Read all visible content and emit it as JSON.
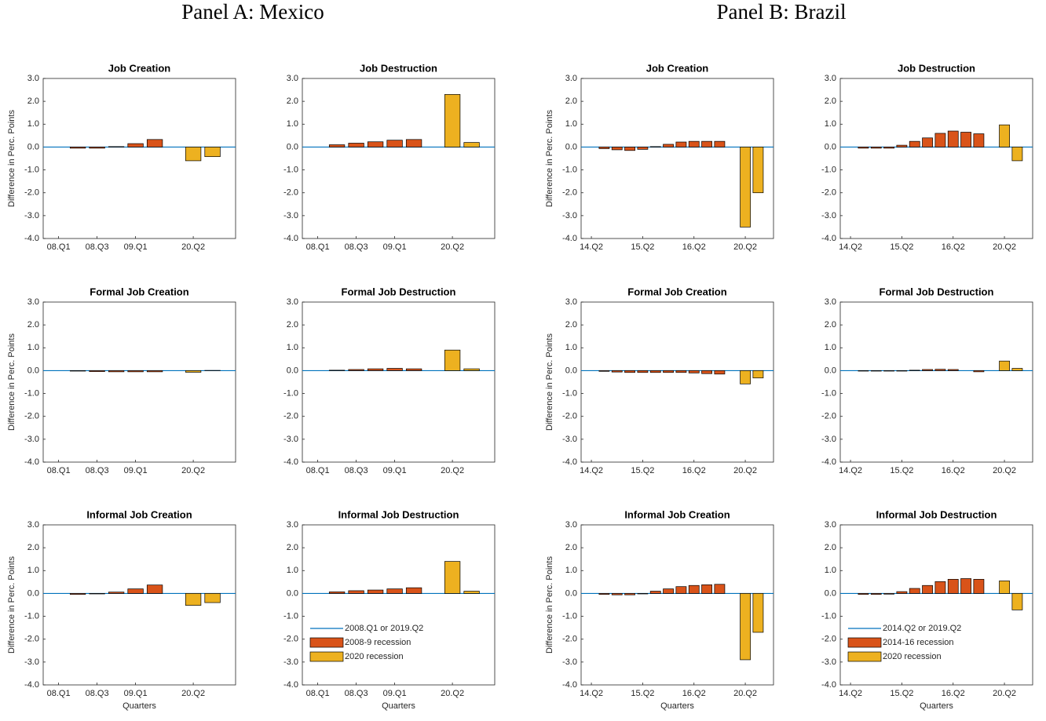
{
  "panels": [
    {
      "title": "Panel A: Mexico"
    },
    {
      "title": "Panel B: Brazil"
    }
  ],
  "chart_data": [
    {
      "type": "bar",
      "title": "Job Creation",
      "ylabel": "Difference in Perc. Points",
      "categories": [
        "08.Q1",
        null,
        "08.Q3",
        null,
        "09.Q1",
        null,
        null,
        "20.Q2",
        null
      ],
      "ylim": [
        -4,
        3
      ],
      "yticks": [
        {
          "value": -4,
          "label": "-4.0"
        },
        {
          "value": -3,
          "label": "-3.0"
        },
        {
          "value": -2,
          "label": "-2.0"
        },
        {
          "value": -1,
          "label": "-1.0"
        },
        {
          "value": 0,
          "label": "0.0"
        },
        {
          "value": 1,
          "label": "1.0"
        },
        {
          "value": 2,
          "label": "2.0"
        },
        {
          "value": 3,
          "label": "3.0"
        }
      ],
      "baseline": {
        "value": 0,
        "color": "#0072bd"
      },
      "series": [
        {
          "color": "#d95319",
          "values": [
            0,
            -0.05,
            -0.05,
            0.02,
            0.15,
            0.33,
            null,
            null,
            null
          ]
        },
        {
          "color": "#edb120",
          "values": [
            null,
            null,
            null,
            null,
            null,
            null,
            null,
            -0.6,
            -0.42
          ]
        }
      ]
    },
    {
      "type": "bar",
      "title": "Job Destruction",
      "categories": [
        "08.Q1",
        null,
        "08.Q3",
        null,
        "09.Q1",
        null,
        null,
        "20.Q2",
        null
      ],
      "ylim": [
        -4,
        3
      ],
      "yticks": [
        {
          "value": -4,
          "label": "-4.0"
        },
        {
          "value": -3,
          "label": "-3.0"
        },
        {
          "value": -2,
          "label": "-2.0"
        },
        {
          "value": -1,
          "label": "-1.0"
        },
        {
          "value": 0,
          "label": "0.0"
        },
        {
          "value": 1,
          "label": "1.0"
        },
        {
          "value": 2,
          "label": "2.0"
        },
        {
          "value": 3,
          "label": "3.0"
        }
      ],
      "baseline": {
        "value": 0,
        "color": "#0072bd"
      },
      "series": [
        {
          "color": "#d95319",
          "values": [
            0,
            0.1,
            0.17,
            0.23,
            0.3,
            0.33,
            null,
            null,
            null
          ]
        },
        {
          "color": "#edb120",
          "values": [
            null,
            null,
            null,
            null,
            null,
            null,
            null,
            2.3,
            0.2
          ]
        }
      ]
    },
    {
      "type": "bar",
      "title": "Formal Job Creation",
      "ylabel": "Difference in Perc. Points",
      "categories": [
        "08.Q1",
        null,
        "08.Q3",
        null,
        "09.Q1",
        null,
        null,
        "20.Q2",
        null
      ],
      "ylim": [
        -4,
        3
      ],
      "yticks": [
        {
          "value": -4,
          "label": "-4.0"
        },
        {
          "value": -3,
          "label": "-3.0"
        },
        {
          "value": -2,
          "label": "-2.0"
        },
        {
          "value": -1,
          "label": "-1.0"
        },
        {
          "value": 0,
          "label": "0.0"
        },
        {
          "value": 1,
          "label": "1.0"
        },
        {
          "value": 2,
          "label": "2.0"
        },
        {
          "value": 3,
          "label": "3.0"
        }
      ],
      "baseline": {
        "value": 0,
        "color": "#0072bd"
      },
      "series": [
        {
          "color": "#d95319",
          "values": [
            0,
            -0.02,
            -0.04,
            -0.05,
            -0.05,
            -0.05,
            null,
            null,
            null
          ]
        },
        {
          "color": "#edb120",
          "values": [
            null,
            null,
            null,
            null,
            null,
            null,
            null,
            -0.07,
            0.01
          ]
        }
      ]
    },
    {
      "type": "bar",
      "title": "Formal Job Destruction",
      "categories": [
        "08.Q1",
        null,
        "08.Q3",
        null,
        "09.Q1",
        null,
        null,
        "20.Q2",
        null
      ],
      "ylim": [
        -4,
        3
      ],
      "yticks": [
        {
          "value": -4,
          "label": "-4.0"
        },
        {
          "value": -3,
          "label": "-3.0"
        },
        {
          "value": -2,
          "label": "-2.0"
        },
        {
          "value": -1,
          "label": "-1.0"
        },
        {
          "value": 0,
          "label": "0.0"
        },
        {
          "value": 1,
          "label": "1.0"
        },
        {
          "value": 2,
          "label": "2.0"
        },
        {
          "value": 3,
          "label": "3.0"
        }
      ],
      "baseline": {
        "value": 0,
        "color": "#0072bd"
      },
      "series": [
        {
          "color": "#d95319",
          "values": [
            0,
            0.02,
            0.05,
            0.08,
            0.1,
            0.08,
            null,
            null,
            null
          ]
        },
        {
          "color": "#edb120",
          "values": [
            null,
            null,
            null,
            null,
            null,
            null,
            null,
            0.9,
            0.08
          ]
        }
      ]
    },
    {
      "type": "bar",
      "title": "Informal Job Creation",
      "ylabel": "Difference in Perc. Points",
      "xlabel": "Quarters",
      "categories": [
        "08.Q1",
        null,
        "08.Q3",
        null,
        "09.Q1",
        null,
        null,
        "20.Q2",
        null
      ],
      "ylim": [
        -4,
        3
      ],
      "yticks": [
        {
          "value": -4,
          "label": "-4.0"
        },
        {
          "value": -3,
          "label": "-3.0"
        },
        {
          "value": -2,
          "label": "-2.0"
        },
        {
          "value": -1,
          "label": "-1.0"
        },
        {
          "value": 0,
          "label": "0.0"
        },
        {
          "value": 1,
          "label": "1.0"
        },
        {
          "value": 2,
          "label": "2.0"
        },
        {
          "value": 3,
          "label": "3.0"
        }
      ],
      "baseline": {
        "value": 0,
        "color": "#0072bd"
      },
      "series": [
        {
          "color": "#d95319",
          "values": [
            0,
            -0.04,
            -0.02,
            0.06,
            0.2,
            0.37,
            null,
            null,
            null
          ]
        },
        {
          "color": "#edb120",
          "values": [
            null,
            null,
            null,
            null,
            null,
            null,
            null,
            -0.52,
            -0.4
          ]
        }
      ]
    },
    {
      "type": "bar",
      "title": "Informal Job Destruction",
      "xlabel": "Quarters",
      "legend": "lower left",
      "categories": [
        "08.Q1",
        null,
        "08.Q3",
        null,
        "09.Q1",
        null,
        null,
        "20.Q2",
        null
      ],
      "ylim": [
        -4,
        3
      ],
      "yticks": [
        {
          "value": -4,
          "label": "-4.0"
        },
        {
          "value": -3,
          "label": "-3.0"
        },
        {
          "value": -2,
          "label": "-2.0"
        },
        {
          "value": -1,
          "label": "-1.0"
        },
        {
          "value": 0,
          "label": "0.0"
        },
        {
          "value": 1,
          "label": "1.0"
        },
        {
          "value": 2,
          "label": "2.0"
        },
        {
          "value": 3,
          "label": "3.0"
        }
      ],
      "baseline": {
        "value": 0,
        "color": "#0072bd",
        "name": "2008.Q1 or 2019.Q2"
      },
      "series": [
        {
          "name": "2008-9 recession",
          "color": "#d95319",
          "values": [
            0,
            0.07,
            0.12,
            0.15,
            0.2,
            0.25,
            null,
            null,
            null
          ]
        },
        {
          "name": "2020 recession",
          "color": "#edb120",
          "values": [
            null,
            null,
            null,
            null,
            null,
            null,
            null,
            1.4,
            0.1
          ]
        }
      ]
    },
    {
      "type": "bar",
      "title": "Job Creation",
      "ylabel": "Difference in Perc. Points",
      "categories": [
        "14.Q2",
        null,
        null,
        null,
        "15.Q2",
        null,
        null,
        null,
        "16.Q2",
        null,
        null,
        null,
        "20.Q2",
        null
      ],
      "ylim": [
        -4,
        3
      ],
      "yticks": [
        {
          "value": -4,
          "label": "-4.0"
        },
        {
          "value": -3,
          "label": "-3.0"
        },
        {
          "value": -2,
          "label": "-2.0"
        },
        {
          "value": -1,
          "label": "-1.0"
        },
        {
          "value": 0,
          "label": "0.0"
        },
        {
          "value": 1,
          "label": "1.0"
        },
        {
          "value": 2,
          "label": "2.0"
        },
        {
          "value": 3,
          "label": "3.0"
        }
      ],
      "baseline": {
        "value": 0,
        "color": "#0072bd"
      },
      "series": [
        {
          "color": "#d95319",
          "values": [
            0,
            -0.07,
            -0.12,
            -0.15,
            -0.1,
            0.02,
            0.12,
            0.22,
            0.25,
            0.25,
            0.25,
            null,
            null,
            null
          ]
        },
        {
          "color": "#edb120",
          "values": [
            null,
            null,
            null,
            null,
            null,
            null,
            null,
            null,
            null,
            null,
            null,
            null,
            -3.5,
            -2.0
          ]
        }
      ]
    },
    {
      "type": "bar",
      "title": "Job Destruction",
      "categories": [
        "14.Q2",
        null,
        null,
        null,
        "15.Q2",
        null,
        null,
        null,
        "16.Q2",
        null,
        null,
        null,
        "20.Q2",
        null
      ],
      "ylim": [
        -4,
        3
      ],
      "yticks": [
        {
          "value": -4,
          "label": "-4.0"
        },
        {
          "value": -3,
          "label": "-3.0"
        },
        {
          "value": -2,
          "label": "-2.0"
        },
        {
          "value": -1,
          "label": "-1.0"
        },
        {
          "value": 0,
          "label": "0.0"
        },
        {
          "value": 1,
          "label": "1.0"
        },
        {
          "value": 2,
          "label": "2.0"
        },
        {
          "value": 3,
          "label": "3.0"
        }
      ],
      "baseline": {
        "value": 0,
        "color": "#0072bd"
      },
      "series": [
        {
          "color": "#d95319",
          "values": [
            0,
            -0.05,
            -0.05,
            -0.05,
            0.08,
            0.25,
            0.4,
            0.6,
            0.7,
            0.65,
            0.58,
            null,
            null,
            null
          ]
        },
        {
          "color": "#edb120",
          "values": [
            null,
            null,
            null,
            null,
            null,
            null,
            null,
            null,
            null,
            null,
            null,
            null,
            0.97,
            -0.6
          ]
        }
      ]
    },
    {
      "type": "bar",
      "title": "Formal Job Creation",
      "ylabel": "Difference in Perc. Points",
      "categories": [
        "14.Q2",
        null,
        null,
        null,
        "15.Q2",
        null,
        null,
        null,
        "16.Q2",
        null,
        null,
        null,
        "20.Q2",
        null
      ],
      "ylim": [
        -4,
        3
      ],
      "yticks": [
        {
          "value": -4,
          "label": "-4.0"
        },
        {
          "value": -3,
          "label": "-3.0"
        },
        {
          "value": -2,
          "label": "-2.0"
        },
        {
          "value": -1,
          "label": "-1.0"
        },
        {
          "value": 0,
          "label": "0.0"
        },
        {
          "value": 1,
          "label": "1.0"
        },
        {
          "value": 2,
          "label": "2.0"
        },
        {
          "value": 3,
          "label": "3.0"
        }
      ],
      "baseline": {
        "value": 0,
        "color": "#0072bd"
      },
      "series": [
        {
          "color": "#d95319",
          "values": [
            0,
            -0.03,
            -0.06,
            -0.08,
            -0.08,
            -0.08,
            -0.08,
            -0.08,
            -0.1,
            -0.13,
            -0.15,
            null,
            null,
            null
          ]
        },
        {
          "color": "#edb120",
          "values": [
            null,
            null,
            null,
            null,
            null,
            null,
            null,
            null,
            null,
            null,
            null,
            null,
            -0.58,
            -0.32
          ]
        }
      ]
    },
    {
      "type": "bar",
      "title": "Formal Job Destruction",
      "categories": [
        "14.Q2",
        null,
        null,
        null,
        "15.Q2",
        null,
        null,
        null,
        "16.Q2",
        null,
        null,
        null,
        "20.Q2",
        null
      ],
      "ylim": [
        -4,
        3
      ],
      "yticks": [
        {
          "value": -4,
          "label": "-4.0"
        },
        {
          "value": -3,
          "label": "-3.0"
        },
        {
          "value": -2,
          "label": "-2.0"
        },
        {
          "value": -1,
          "label": "-1.0"
        },
        {
          "value": 0,
          "label": "0.0"
        },
        {
          "value": 1,
          "label": "1.0"
        },
        {
          "value": 2,
          "label": "2.0"
        },
        {
          "value": 3,
          "label": "3.0"
        }
      ],
      "baseline": {
        "value": 0,
        "color": "#0072bd"
      },
      "series": [
        {
          "color": "#d95319",
          "values": [
            0,
            -0.02,
            -0.02,
            -0.02,
            -0.02,
            0.02,
            0.05,
            0.06,
            0.05,
            0,
            -0.05,
            null,
            null,
            null
          ]
        },
        {
          "color": "#edb120",
          "values": [
            null,
            null,
            null,
            null,
            null,
            null,
            null,
            null,
            null,
            null,
            null,
            null,
            0.42,
            0.1
          ]
        }
      ]
    },
    {
      "type": "bar",
      "title": "Informal Job Creation",
      "ylabel": "Difference in Perc. Points",
      "xlabel": "Quarters",
      "categories": [
        "14.Q2",
        null,
        null,
        null,
        "15.Q2",
        null,
        null,
        null,
        "16.Q2",
        null,
        null,
        null,
        "20.Q2",
        null
      ],
      "ylim": [
        -4,
        3
      ],
      "yticks": [
        {
          "value": -4,
          "label": "-4.0"
        },
        {
          "value": -3,
          "label": "-3.0"
        },
        {
          "value": -2,
          "label": "-2.0"
        },
        {
          "value": -1,
          "label": "-1.0"
        },
        {
          "value": 0,
          "label": "0.0"
        },
        {
          "value": 1,
          "label": "1.0"
        },
        {
          "value": 2,
          "label": "2.0"
        },
        {
          "value": 3,
          "label": "3.0"
        }
      ],
      "baseline": {
        "value": 0,
        "color": "#0072bd"
      },
      "series": [
        {
          "color": "#d95319",
          "values": [
            0,
            -0.04,
            -0.06,
            -0.06,
            -0.02,
            0.1,
            0.2,
            0.3,
            0.35,
            0.38,
            0.4,
            null,
            null,
            null
          ]
        },
        {
          "color": "#edb120",
          "values": [
            null,
            null,
            null,
            null,
            null,
            null,
            null,
            null,
            null,
            null,
            null,
            null,
            -2.9,
            -1.7
          ]
        }
      ]
    },
    {
      "type": "bar",
      "title": "Informal Job Destruction",
      "xlabel": "Quarters",
      "legend": "lower left",
      "categories": [
        "14.Q2",
        null,
        null,
        null,
        "15.Q2",
        null,
        null,
        null,
        "16.Q2",
        null,
        null,
        null,
        "20.Q2",
        null
      ],
      "ylim": [
        -4,
        3
      ],
      "yticks": [
        {
          "value": -4,
          "label": "-4.0"
        },
        {
          "value": -3,
          "label": "-3.0"
        },
        {
          "value": -2,
          "label": "-2.0"
        },
        {
          "value": -1,
          "label": "-1.0"
        },
        {
          "value": 0,
          "label": "0.0"
        },
        {
          "value": 1,
          "label": "1.0"
        },
        {
          "value": 2,
          "label": "2.0"
        },
        {
          "value": 3,
          "label": "3.0"
        }
      ],
      "baseline": {
        "value": 0,
        "color": "#0072bd",
        "name": "2014.Q2 or 2019.Q2"
      },
      "series": [
        {
          "name": "2014-16 recession",
          "color": "#d95319",
          "values": [
            0,
            -0.04,
            -0.04,
            -0.03,
            0.08,
            0.22,
            0.35,
            0.52,
            0.62,
            0.65,
            0.62,
            null,
            null,
            null
          ]
        },
        {
          "name": "2020 recession",
          "color": "#edb120",
          "values": [
            null,
            null,
            null,
            null,
            null,
            null,
            null,
            null,
            null,
            null,
            null,
            null,
            0.55,
            -0.72
          ]
        }
      ]
    }
  ]
}
